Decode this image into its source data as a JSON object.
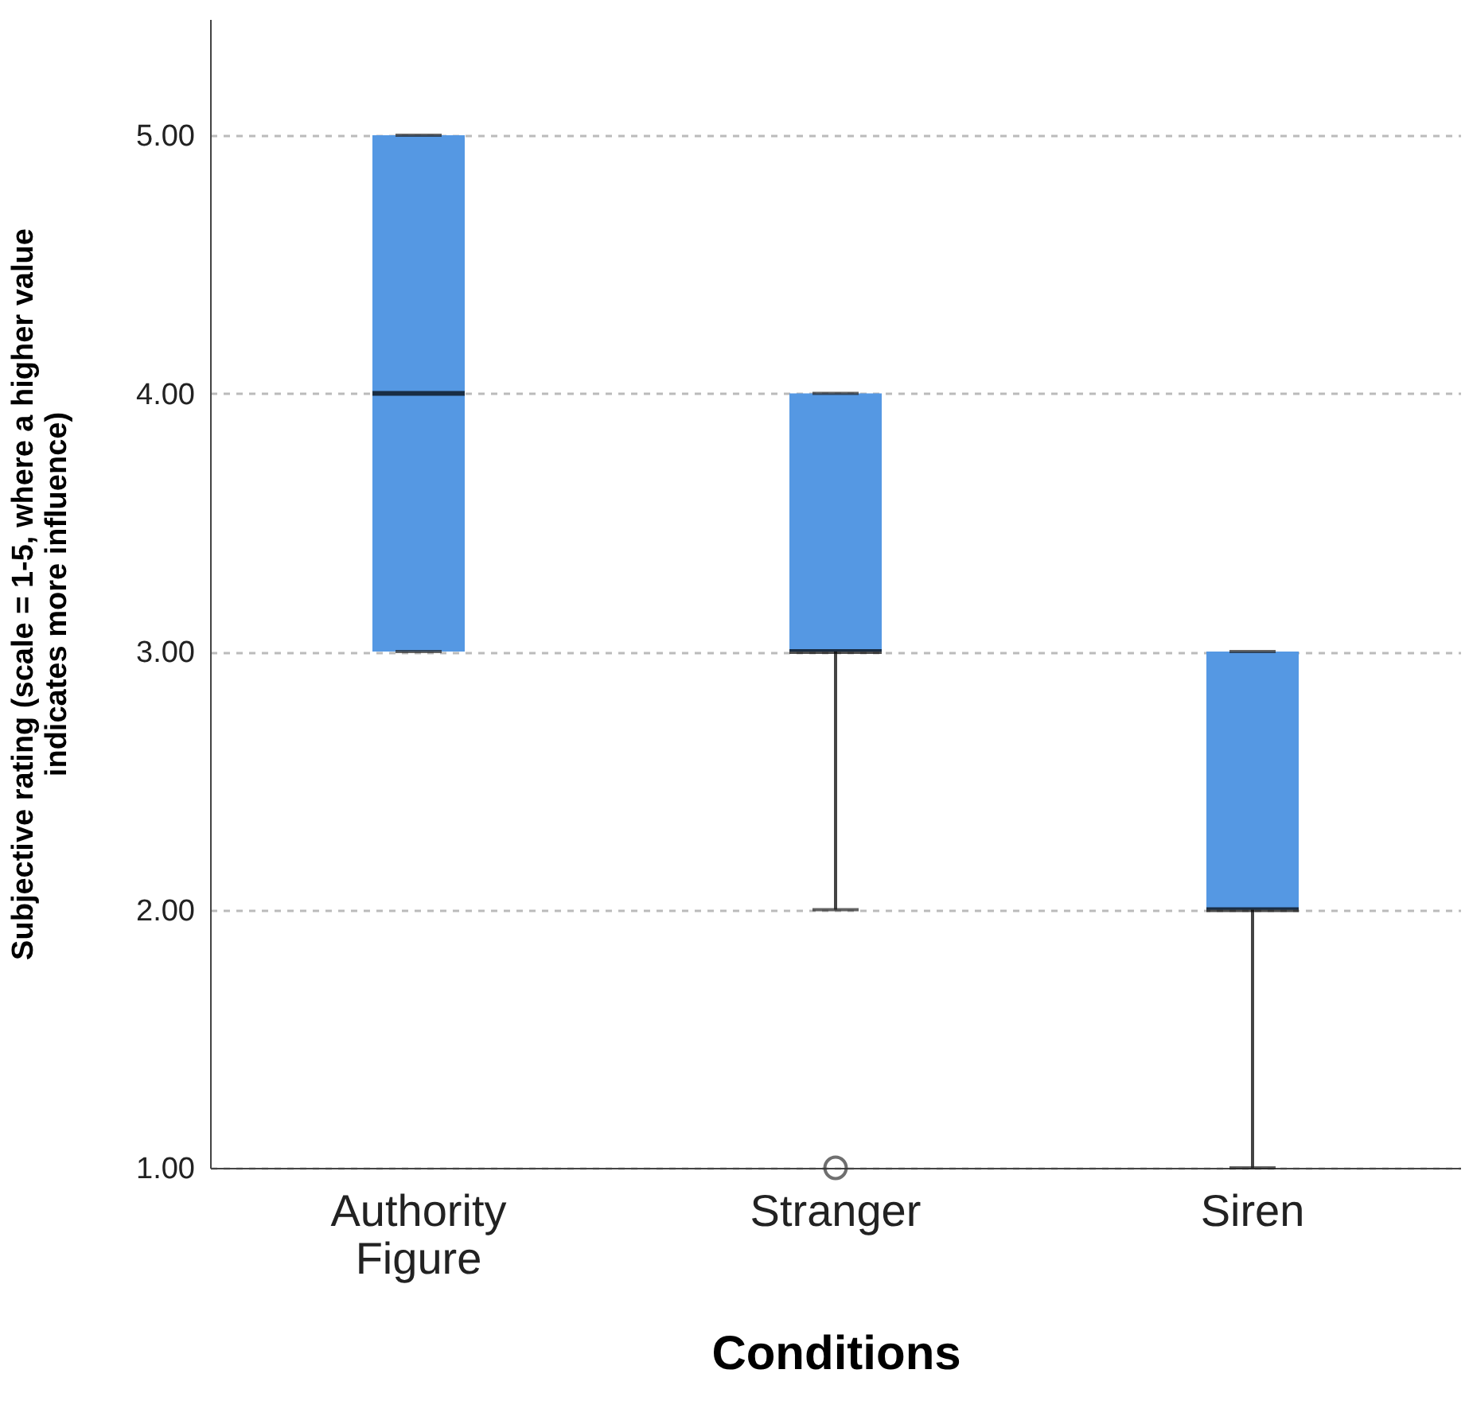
{
  "chart_data": {
    "type": "box",
    "xlabel": "Conditions",
    "ylabel": "Subjective rating (scale = 1-5, where a higher value indicates more influence)",
    "categories": [
      "Authority Figure",
      "Stranger",
      "Siren"
    ],
    "boxes": [
      {
        "low": 3,
        "q1": 3,
        "median": 4,
        "q3": 5,
        "high": 5
      },
      {
        "low": 2,
        "q1": 3,
        "median": 3,
        "q3": 4,
        "high": 4,
        "outliers": [
          1
        ]
      },
      {
        "low": 1,
        "q1": 2,
        "median": 2,
        "q3": 3,
        "high": 3
      }
    ],
    "color": "#5598e3",
    "ylim": [
      1,
      5.45
    ],
    "yticks": [
      {
        "value": 1,
        "label": "1.00"
      },
      {
        "value": 2,
        "label": "2.00"
      },
      {
        "value": 3,
        "label": "3.00"
      },
      {
        "value": 4,
        "label": "4.00"
      },
      {
        "value": 5,
        "label": "5.00"
      }
    ],
    "grid": "y"
  }
}
